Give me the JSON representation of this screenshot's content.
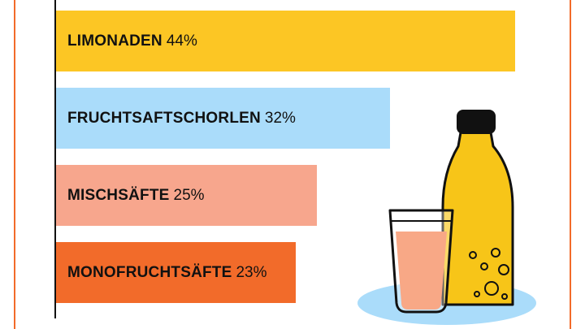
{
  "chart_data": {
    "type": "bar",
    "orientation": "horizontal",
    "categories": [
      "LIMONADEN",
      "FRUCHTSAFTSCHORLEN",
      "MISCHSÄFTE",
      "MONOFRUCHTSÄFTE"
    ],
    "values": [
      44,
      32,
      25,
      23
    ],
    "value_labels": [
      "44%",
      "32%",
      "25%",
      "23%"
    ],
    "unit": "%",
    "colors": [
      "#fcc624",
      "#aadcfa",
      "#f7a68d",
      "#f26b2a"
    ],
    "grid": false,
    "legend": "none"
  },
  "illustration": {
    "icons": [
      "bottle-icon",
      "glass-icon",
      "plate-icon"
    ],
    "colors": {
      "juice": "#f7c518",
      "drink": "#f47a45",
      "plate": "#aadcfa",
      "cap": "#111111"
    }
  },
  "colors": {
    "frame": "#f26b2a",
    "axis": "#111111"
  }
}
